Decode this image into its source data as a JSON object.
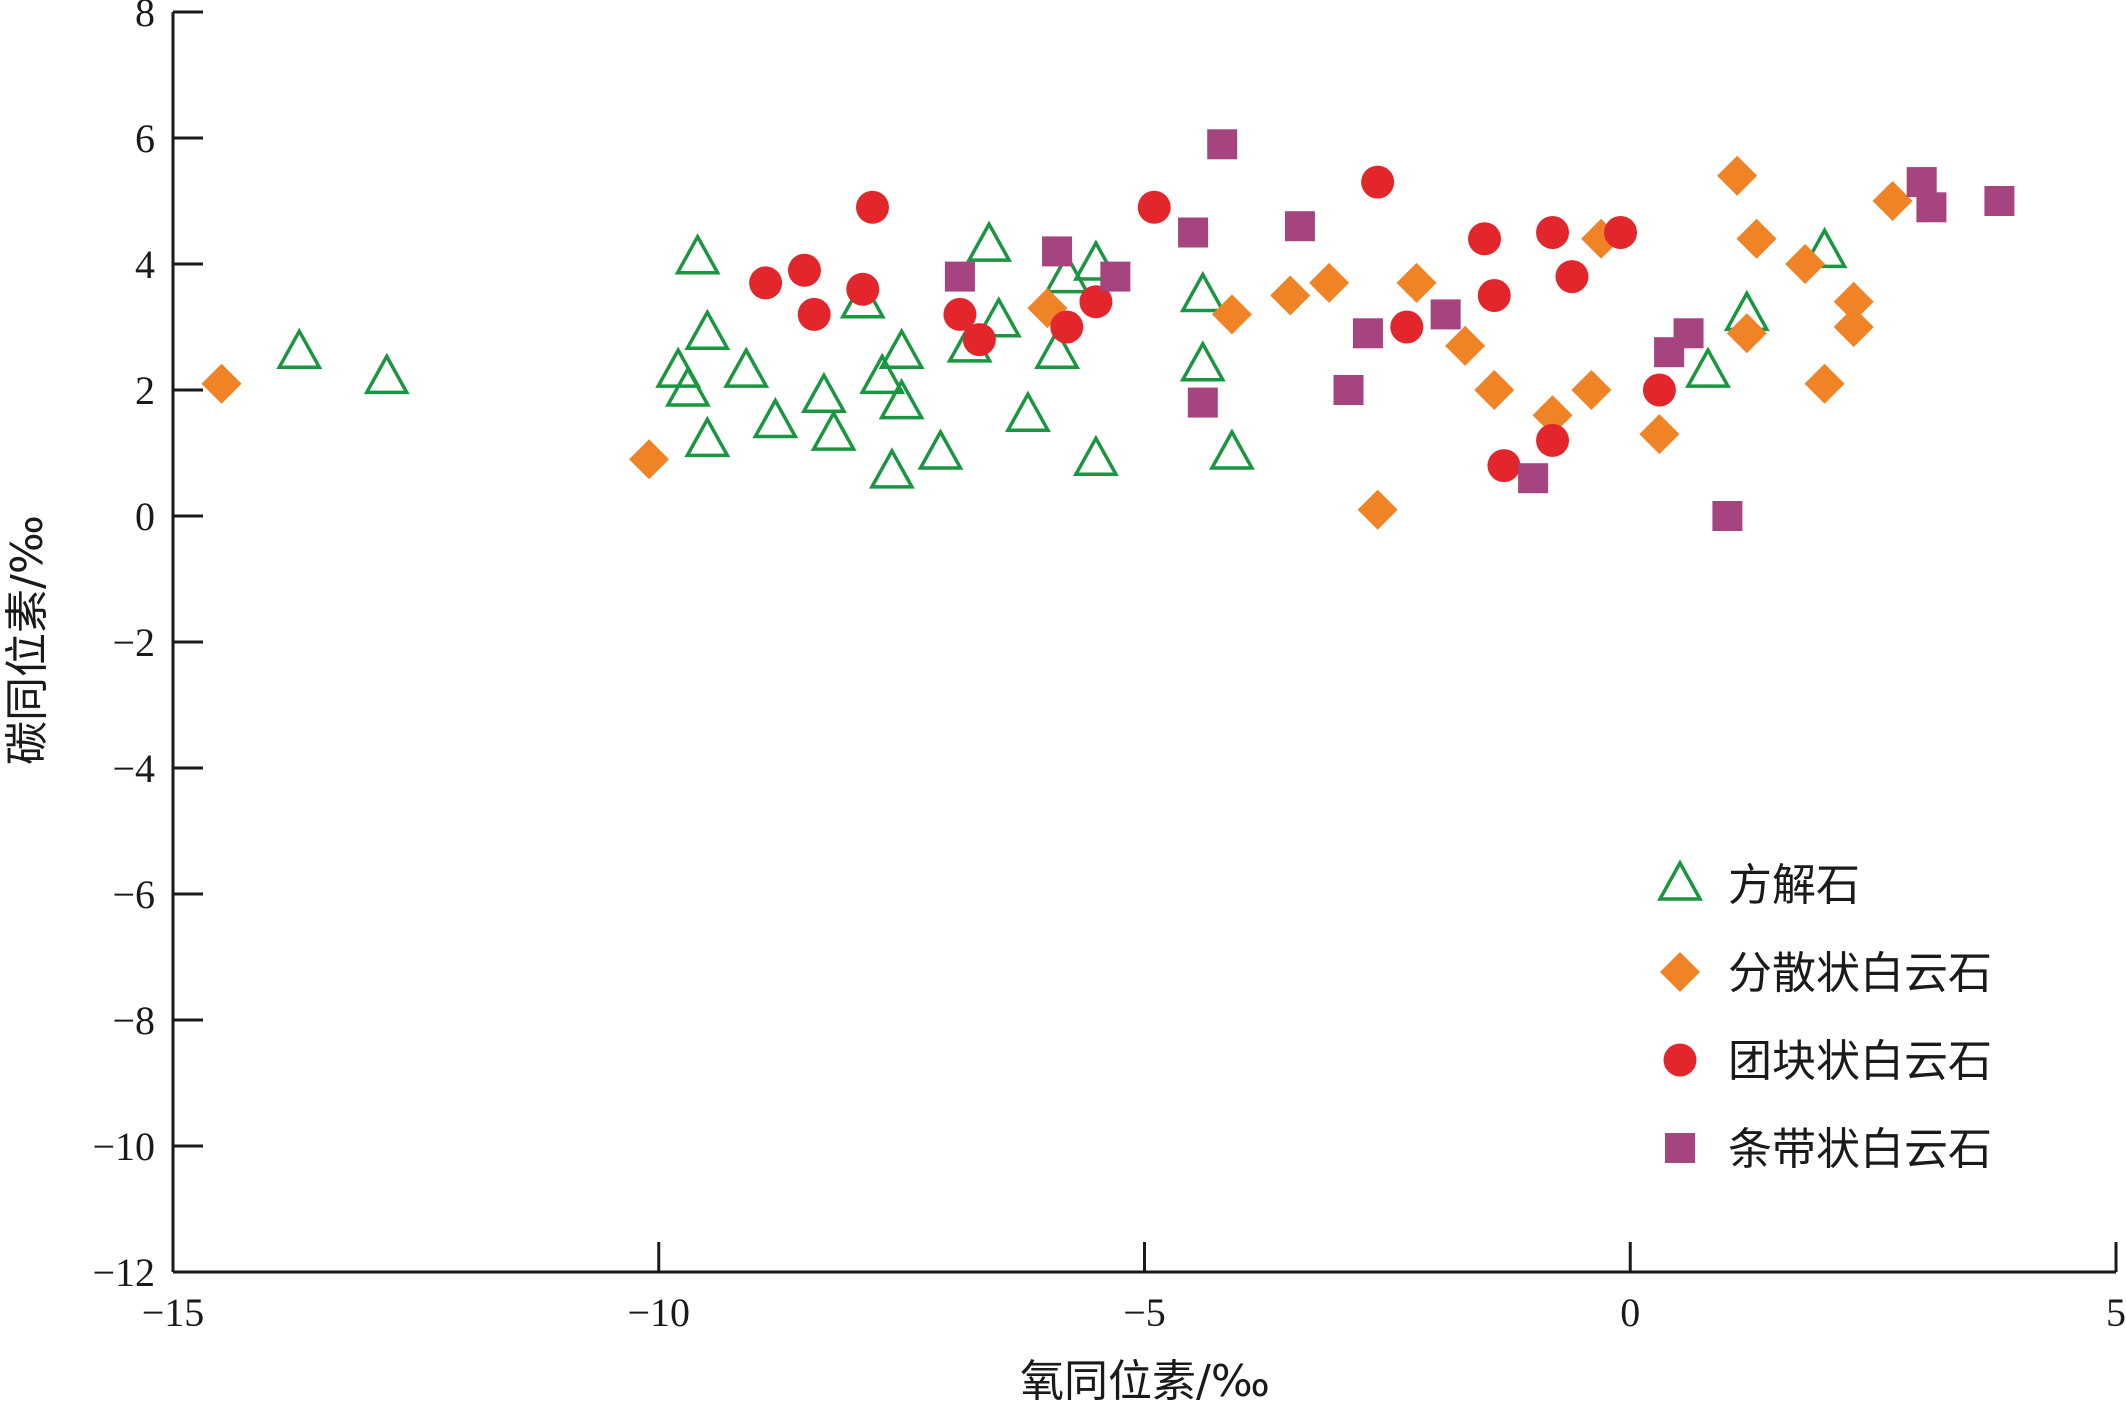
{
  "chart_data": {
    "type": "scatter",
    "xlabel": "氧同位素/‰",
    "ylabel": "碳同位素/‰",
    "xlim": [
      -15,
      5
    ],
    "ylim": [
      -12,
      8
    ],
    "xticks": [
      -15,
      -10,
      -5,
      0,
      5
    ],
    "yticks": [
      -12,
      -10,
      -8,
      -6,
      -4,
      -2,
      0,
      2,
      4,
      6,
      8
    ],
    "xtick_labels": [
      "−15",
      "−10",
      "−5",
      "0",
      "5"
    ],
    "ytick_labels": [
      "−12",
      "−10",
      "−8",
      "−6",
      "−4",
      "−2",
      "0",
      "2",
      "4",
      "6",
      "8"
    ],
    "grid": false,
    "legend_position": "bottom-right",
    "series": [
      {
        "name": "方解石",
        "marker": "triangle-open",
        "color": "#1a9641",
        "points": [
          [
            -13.7,
            2.6
          ],
          [
            -12.8,
            2.2
          ],
          [
            -9.6,
            4.1
          ],
          [
            -9.5,
            2.9
          ],
          [
            -9.8,
            2.3
          ],
          [
            -9.7,
            2.0
          ],
          [
            -9.5,
            1.2
          ],
          [
            -9.1,
            2.3
          ],
          [
            -8.8,
            1.5
          ],
          [
            -8.3,
            1.9
          ],
          [
            -8.2,
            1.3
          ],
          [
            -7.9,
            3.4
          ],
          [
            -7.7,
            2.2
          ],
          [
            -7.5,
            2.6
          ],
          [
            -7.5,
            1.8
          ],
          [
            -7.6,
            0.7
          ],
          [
            -7.1,
            1.0
          ],
          [
            -6.8,
            2.7
          ],
          [
            -6.6,
            4.3
          ],
          [
            -6.5,
            3.1
          ],
          [
            -6.2,
            1.6
          ],
          [
            -5.9,
            2.6
          ],
          [
            -5.8,
            3.8
          ],
          [
            -5.5,
            4.0
          ],
          [
            -5.5,
            0.9
          ],
          [
            -4.4,
            3.5
          ],
          [
            -4.4,
            2.4
          ],
          [
            -4.1,
            1.0
          ],
          [
            0.8,
            2.3
          ],
          [
            1.2,
            3.2
          ],
          [
            2.0,
            4.2
          ]
        ]
      },
      {
        "name": "分散状白云石",
        "marker": "diamond",
        "color": "#f08326",
        "points": [
          [
            -14.5,
            2.1
          ],
          [
            -10.1,
            0.9
          ],
          [
            -6.0,
            3.3
          ],
          [
            -4.1,
            3.2
          ],
          [
            -3.5,
            3.5
          ],
          [
            -3.1,
            3.7
          ],
          [
            -2.6,
            0.1
          ],
          [
            -2.2,
            3.7
          ],
          [
            -1.7,
            2.7
          ],
          [
            -1.4,
            2.0
          ],
          [
            -0.8,
            1.6
          ],
          [
            -0.4,
            2.0
          ],
          [
            -0.3,
            4.4
          ],
          [
            0.3,
            1.3
          ],
          [
            1.1,
            5.4
          ],
          [
            1.2,
            2.9
          ],
          [
            1.3,
            4.4
          ],
          [
            1.8,
            4.0
          ],
          [
            2.0,
            2.1
          ],
          [
            2.3,
            3.0
          ],
          [
            2.3,
            3.4
          ],
          [
            2.7,
            5.0
          ]
        ]
      },
      {
        "name": "团块状白云石",
        "marker": "circle",
        "color": "#e3262b",
        "points": [
          [
            -8.9,
            3.7
          ],
          [
            -8.5,
            3.9
          ],
          [
            -8.4,
            3.2
          ],
          [
            -7.9,
            3.6
          ],
          [
            -7.8,
            4.9
          ],
          [
            -6.9,
            3.2
          ],
          [
            -6.7,
            2.8
          ],
          [
            -5.8,
            3.0
          ],
          [
            -5.5,
            3.4
          ],
          [
            -4.9,
            4.9
          ],
          [
            -2.6,
            5.3
          ],
          [
            -2.3,
            3.0
          ],
          [
            -1.5,
            4.4
          ],
          [
            -1.4,
            3.5
          ],
          [
            -1.3,
            0.8
          ],
          [
            -0.8,
            4.5
          ],
          [
            -0.8,
            1.2
          ],
          [
            -0.6,
            3.8
          ],
          [
            -0.1,
            4.5
          ],
          [
            0.3,
            2.0
          ]
        ]
      },
      {
        "name": "条带状白云石",
        "marker": "square",
        "color": "#a5447f",
        "points": [
          [
            -6.9,
            3.8
          ],
          [
            -5.9,
            4.2
          ],
          [
            -5.3,
            3.8
          ],
          [
            -4.5,
            4.5
          ],
          [
            -4.4,
            1.8
          ],
          [
            -4.2,
            5.9
          ],
          [
            -3.4,
            4.6
          ],
          [
            -2.9,
            2.0
          ],
          [
            -2.7,
            2.9
          ],
          [
            -1.9,
            3.2
          ],
          [
            -1.0,
            0.6
          ],
          [
            0.4,
            2.6
          ],
          [
            0.6,
            2.9
          ],
          [
            1.0,
            0.0
          ],
          [
            3.0,
            5.3
          ],
          [
            3.1,
            4.9
          ],
          [
            3.8,
            5.0
          ]
        ]
      }
    ]
  }
}
